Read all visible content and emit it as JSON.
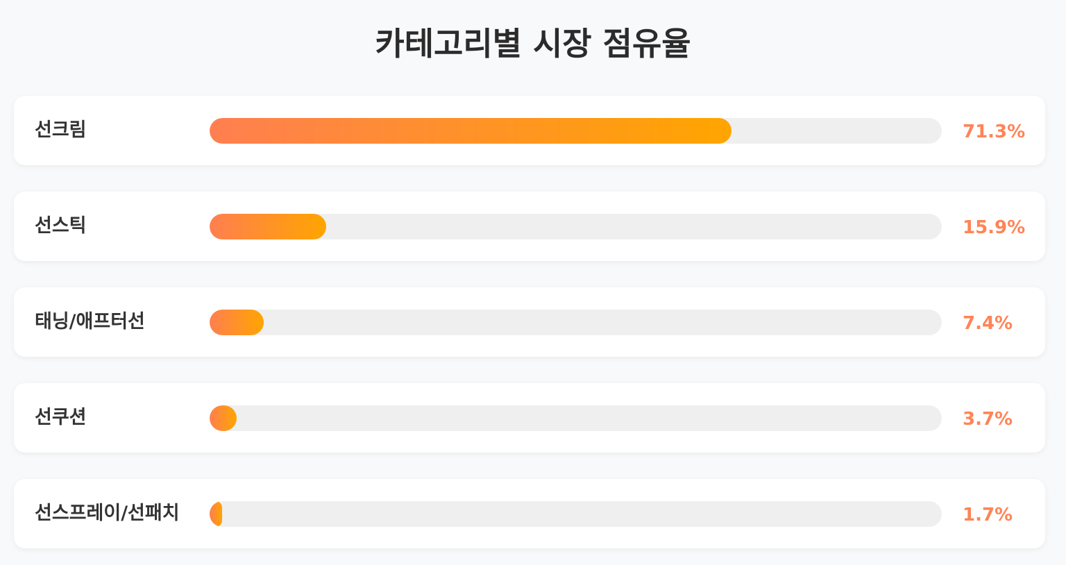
{
  "colors": {
    "background": "#f8f9fa",
    "card": "#ffffff",
    "track": "#efefef",
    "bar_start": "#ff7f50",
    "bar_end": "#ffa500",
    "value_text": "#ff8456",
    "title_text": "#2b2b2b"
  },
  "chart_data": {
    "type": "bar",
    "orientation": "horizontal",
    "title": "카테고리별 시장 점유율",
    "xlabel": "",
    "ylabel": "",
    "xlim": [
      0,
      100
    ],
    "grid": false,
    "legend": "none",
    "unit": "%",
    "categories": [
      "선크림",
      "선스틱",
      "태닝/애프터선",
      "선쿠션",
      "선스프레이/선패치"
    ],
    "values": [
      71.3,
      15.9,
      7.4,
      3.7,
      1.7
    ],
    "value_labels": [
      "71.3%",
      "15.9%",
      "7.4%",
      "3.7%",
      "1.7%"
    ]
  }
}
